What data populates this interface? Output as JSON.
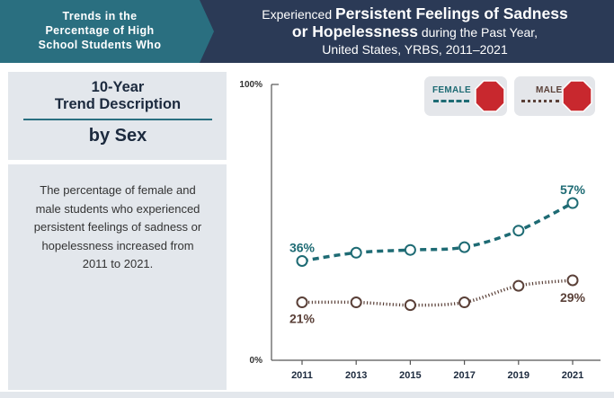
{
  "header": {
    "left_line1": "Trends in the",
    "left_line2": "Percentage of High",
    "left_line3": "School Students Who",
    "title_pre": "Experienced",
    "title_bold1": "Persistent Feelings of Sadness",
    "title_bold2": "or Hopelessness",
    "title_post": "during the Past Year,",
    "title_line3": "United States, YRBS, 2011–2021"
  },
  "sidebar": {
    "heading_line1": "10-Year",
    "heading_line2": "Trend Description",
    "subheading": "by Sex",
    "description": "The percentage of female and male students who experienced persistent feelings of sadness or hopelessness increased from 2011 to 2021."
  },
  "legend": {
    "female_label": "FEMALE",
    "male_label": "MALE"
  },
  "colors": {
    "header_bg": "#2b3a56",
    "header_left_bg": "#2a6f80",
    "female": "#1e6b74",
    "male": "#5a4038",
    "stop_sign": "#c8282e",
    "sidebar_bg": "#e3e7ec"
  },
  "chart_data": {
    "type": "line",
    "title": "Experienced Persistent Feelings of Sadness or Hopelessness during the Past Year, United States, YRBS, 2011–2021",
    "x": [
      "2011",
      "2013",
      "2015",
      "2017",
      "2019",
      "2021"
    ],
    "ylim": [
      0,
      100
    ],
    "ytick_labels": [
      "0%",
      "100%"
    ],
    "grid": false,
    "legend_position": "top-right",
    "series": [
      {
        "name": "Female",
        "values": [
          36,
          39,
          40,
          41,
          47,
          57
        ],
        "style": "dashed",
        "label_first": "36%",
        "label_last": "57%"
      },
      {
        "name": "Male",
        "values": [
          21,
          21,
          20,
          21,
          27,
          29
        ],
        "style": "dotted",
        "label_first": "21%",
        "label_last": "29%"
      }
    ]
  }
}
